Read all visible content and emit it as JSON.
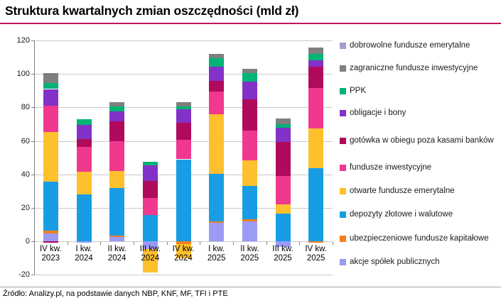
{
  "title": "Struktura kwartalnych zmian oszczędności (mld zł)",
  "source": "Źródło: Analizy.pl, na podstawie danych NBP, KNF, MF, TFI i PTE",
  "colors": {
    "title_underline": "#C4145C",
    "grid": "#C9C9C9",
    "axis": "#808080",
    "separator": "#A6A6A6",
    "background": "#FFFFFF"
  },
  "chart_data": {
    "type": "bar",
    "subtype": "stacked",
    "title": "Struktura kwartalnych zmian oszczędności (mld zł)",
    "xlabel": "",
    "ylabel": "",
    "ylim": [
      -20,
      120
    ],
    "y_ticks": [
      120,
      100,
      80,
      60,
      40,
      20,
      0,
      -20
    ],
    "grid": "horizontal",
    "legend_position": "right",
    "legend_order": "reverse-of-stack",
    "categories": [
      "IV kw.\n2023",
      "I kw.\n2024",
      "II kw.\n2024",
      "III kw.\n2024",
      "IV kw.\n2024",
      "I kw.\n2025",
      "II kw.\n2025",
      "III kw.\n2025",
      "IV kw.\n2025"
    ],
    "series": [
      {
        "name": "akcje-spolek-publicznych",
        "label": "akcje spółek publicznych",
        "color": "#9B9BF5",
        "values": [
          4.5,
          -1,
          2.5,
          -4.5,
          0,
          11,
          12,
          -3.5,
          0
        ]
      },
      {
        "name": "ubezpieczeniowe-fundusze-kapitalowe",
        "label": "ubezpieczeniowe fundusze kapitałowe",
        "color": "#F2801F",
        "values": [
          2,
          0,
          1,
          0,
          -1.5,
          1,
          1,
          0,
          -1
        ]
      },
      {
        "name": "depozyty-zlotowe-i-walutowe",
        "label": "depozyty złotowe i walutowe",
        "color": "#189DE4",
        "values": [
          29,
          28,
          28.5,
          15.5,
          49,
          28.5,
          20,
          16.5,
          43.5
        ]
      },
      {
        "name": "otwarte-fundusze-emerytalne",
        "label": "otwarte fundusze emerytalne",
        "color": "#FFC02E",
        "values": [
          30,
          13.5,
          10,
          -14,
          -8.5,
          35.5,
          15.5,
          5.5,
          24
        ]
      },
      {
        "name": "fundusze-inwestycyjne",
        "label": "fundusze inwestycyjne",
        "color": "#F0388F",
        "values": [
          15.5,
          15,
          18,
          10.5,
          11.5,
          13.5,
          17.5,
          17,
          24
        ]
      },
      {
        "name": "gotowka-w-obiegu",
        "label": "gotówka w obiegu poza kasami banków",
        "color": "#B00A5C",
        "values": [
          -1,
          4.5,
          11.5,
          10,
          10.5,
          6.5,
          19,
          20.5,
          13
        ]
      },
      {
        "name": "obligacje-i-bony",
        "label": "obligacje i bony",
        "color": "#8232C8",
        "values": [
          10,
          8.5,
          6,
          9.5,
          8,
          8.5,
          10.5,
          8.5,
          3.5
        ]
      },
      {
        "name": "ppk",
        "label": "PPK",
        "color": "#00B376",
        "values": [
          3.5,
          3.5,
          3,
          2,
          1.5,
          5,
          5,
          2,
          4
        ]
      },
      {
        "name": "zagraniczne-fundusze-inwestycyjne",
        "label": "zagraniczne fundusze inwestycyjne",
        "color": "#7F7F7F",
        "values": [
          6,
          0,
          2.5,
          0,
          2.5,
          2.5,
          2.5,
          3.5,
          4
        ]
      },
      {
        "name": "dobrowolne-fundusze-emerytalne",
        "label": "dobrowolne fundusze emerytalne",
        "color": "#A79BCE",
        "values": [
          0,
          0,
          0,
          0,
          0,
          0,
          0,
          0,
          0
        ]
      }
    ]
  }
}
